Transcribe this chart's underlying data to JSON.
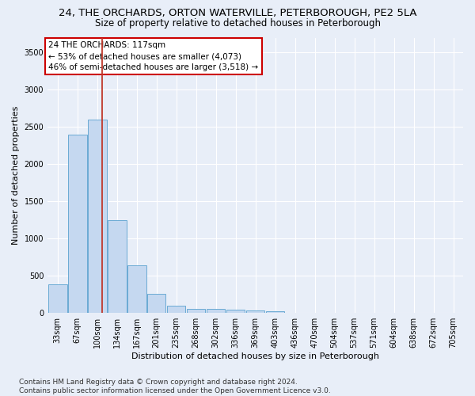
{
  "title": "24, THE ORCHARDS, ORTON WATERVILLE, PETERBOROUGH, PE2 5LA",
  "subtitle": "Size of property relative to detached houses in Peterborough",
  "xlabel": "Distribution of detached houses by size in Peterborough",
  "ylabel": "Number of detached properties",
  "footer_line1": "Contains HM Land Registry data © Crown copyright and database right 2024.",
  "footer_line2": "Contains public sector information licensed under the Open Government Licence v3.0.",
  "categories": [
    "33sqm",
    "67sqm",
    "100sqm",
    "134sqm",
    "167sqm",
    "201sqm",
    "235sqm",
    "268sqm",
    "302sqm",
    "336sqm",
    "369sqm",
    "403sqm",
    "436sqm",
    "470sqm",
    "504sqm",
    "537sqm",
    "571sqm",
    "604sqm",
    "638sqm",
    "672sqm",
    "705sqm"
  ],
  "values": [
    390,
    2400,
    2600,
    1250,
    640,
    255,
    95,
    60,
    55,
    40,
    30,
    20,
    0,
    0,
    0,
    0,
    0,
    0,
    0,
    0,
    0
  ],
  "bar_color": "#c5d8f0",
  "bar_edge_color": "#6aaad4",
  "vline_color": "#c0392b",
  "vline_x_index": 2.25,
  "annotation_text": "24 THE ORCHARDS: 117sqm\n← 53% of detached houses are smaller (4,073)\n46% of semi-detached houses are larger (3,518) →",
  "annotation_box_color": "white",
  "annotation_box_edge_color": "#cc0000",
  "ylim": [
    0,
    3700
  ],
  "yticks": [
    0,
    500,
    1000,
    1500,
    2000,
    2500,
    3000,
    3500
  ],
  "bg_color": "#e8eef8",
  "grid_color": "white",
  "title_fontsize": 9.5,
  "subtitle_fontsize": 8.5,
  "axis_label_fontsize": 8,
  "tick_fontsize": 7,
  "footer_fontsize": 6.5
}
